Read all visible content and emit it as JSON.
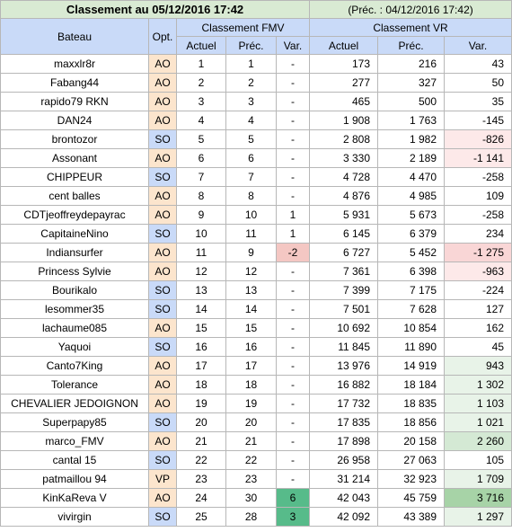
{
  "title": "Classement au 05/12/2016 17:42",
  "prev_title": "(Préc. : 04/12/2016 17:42)",
  "headers": {
    "bateau": "Bateau",
    "opt": "Opt.",
    "fmv_group": "Classement FMV",
    "vr_group": "Classement VR",
    "actuel": "Actuel",
    "prec": "Préc.",
    "var": "Var."
  },
  "colors": {
    "AO": "#fce5cd",
    "SO": "#c9daf8",
    "VP": "#fce5cd",
    "neg_light": "#fde9e9",
    "neg_mid": "#f9d6d6",
    "pos_light": "#e8f3e8",
    "pos_mid": "#d4e9d4",
    "pos_strong": "#a7d3a7",
    "fmv_neg": "#f4c7c3",
    "fmv_pos": "#57bb8a"
  },
  "rows": [
    {
      "name": "maxxlr8r",
      "opt": "AO",
      "fa": "1",
      "fp": "1",
      "fv": "-",
      "va": "173",
      "vp": "216",
      "vv": "43",
      "fvc": "",
      "vvc": ""
    },
    {
      "name": "Fabang44",
      "opt": "AO",
      "fa": "2",
      "fp": "2",
      "fv": "-",
      "va": "277",
      "vp": "327",
      "vv": "50",
      "fvc": "",
      "vvc": ""
    },
    {
      "name": "rapido79 RKN",
      "opt": "AO",
      "fa": "3",
      "fp": "3",
      "fv": "-",
      "va": "465",
      "vp": "500",
      "vv": "35",
      "fvc": "",
      "vvc": ""
    },
    {
      "name": "DAN24",
      "opt": "AO",
      "fa": "4",
      "fp": "4",
      "fv": "-",
      "va": "1 908",
      "vp": "1 763",
      "vv": "-145",
      "fvc": "",
      "vvc": ""
    },
    {
      "name": "brontozor",
      "opt": "SO",
      "fa": "5",
      "fp": "5",
      "fv": "-",
      "va": "2 808",
      "vp": "1 982",
      "vv": "-826",
      "fvc": "",
      "vvc": "neg_light"
    },
    {
      "name": "Assonant",
      "opt": "AO",
      "fa": "6",
      "fp": "6",
      "fv": "-",
      "va": "3 330",
      "vp": "2 189",
      "vv": "-1 141",
      "fvc": "",
      "vvc": "neg_light"
    },
    {
      "name": "CHIPPEUR",
      "opt": "SO",
      "fa": "7",
      "fp": "7",
      "fv": "-",
      "va": "4 728",
      "vp": "4 470",
      "vv": "-258",
      "fvc": "",
      "vvc": ""
    },
    {
      "name": "cent balles",
      "opt": "AO",
      "fa": "8",
      "fp": "8",
      "fv": "-",
      "va": "4 876",
      "vp": "4 985",
      "vv": "109",
      "fvc": "",
      "vvc": ""
    },
    {
      "name": "CDTjeoffreydepayrac",
      "opt": "AO",
      "fa": "9",
      "fp": "10",
      "fv": "1",
      "va": "5 931",
      "vp": "5 673",
      "vv": "-258",
      "fvc": "",
      "vvc": ""
    },
    {
      "name": "CapitaineNino",
      "opt": "SO",
      "fa": "10",
      "fp": "11",
      "fv": "1",
      "va": "6 145",
      "vp": "6 379",
      "vv": "234",
      "fvc": "",
      "vvc": ""
    },
    {
      "name": "Indiansurfer",
      "opt": "AO",
      "fa": "11",
      "fp": "9",
      "fv": "-2",
      "va": "6 727",
      "vp": "5 452",
      "vv": "-1 275",
      "fvc": "fmv_neg",
      "vvc": "neg_mid"
    },
    {
      "name": "Princess Sylvie",
      "opt": "AO",
      "fa": "12",
      "fp": "12",
      "fv": "-",
      "va": "7 361",
      "vp": "6 398",
      "vv": "-963",
      "fvc": "",
      "vvc": "neg_light"
    },
    {
      "name": "Bourikalo",
      "opt": "SO",
      "fa": "13",
      "fp": "13",
      "fv": "-",
      "va": "7 399",
      "vp": "7 175",
      "vv": "-224",
      "fvc": "",
      "vvc": ""
    },
    {
      "name": "lesommer35",
      "opt": "SO",
      "fa": "14",
      "fp": "14",
      "fv": "-",
      "va": "7 501",
      "vp": "7 628",
      "vv": "127",
      "fvc": "",
      "vvc": ""
    },
    {
      "name": "lachaume085",
      "opt": "AO",
      "fa": "15",
      "fp": "15",
      "fv": "-",
      "va": "10 692",
      "vp": "10 854",
      "vv": "162",
      "fvc": "",
      "vvc": ""
    },
    {
      "name": "Yaquoi",
      "opt": "SO",
      "fa": "16",
      "fp": "16",
      "fv": "-",
      "va": "11 845",
      "vp": "11 890",
      "vv": "45",
      "fvc": "",
      "vvc": ""
    },
    {
      "name": "Canto7King",
      "opt": "AO",
      "fa": "17",
      "fp": "17",
      "fv": "-",
      "va": "13 976",
      "vp": "14 919",
      "vv": "943",
      "fvc": "",
      "vvc": "pos_light"
    },
    {
      "name": "Tolerance",
      "opt": "AO",
      "fa": "18",
      "fp": "18",
      "fv": "-",
      "va": "16 882",
      "vp": "18 184",
      "vv": "1 302",
      "fvc": "",
      "vvc": "pos_light"
    },
    {
      "name": "CHEVALIER JEDOIGNON",
      "opt": "AO",
      "fa": "19",
      "fp": "19",
      "fv": "-",
      "va": "17 732",
      "vp": "18 835",
      "vv": "1 103",
      "fvc": "",
      "vvc": "pos_light"
    },
    {
      "name": "Superpapy85",
      "opt": "SO",
      "fa": "20",
      "fp": "20",
      "fv": "-",
      "va": "17 835",
      "vp": "18 856",
      "vv": "1 021",
      "fvc": "",
      "vvc": "pos_light"
    },
    {
      "name": "marco_FMV",
      "opt": "AO",
      "fa": "21",
      "fp": "21",
      "fv": "-",
      "va": "17 898",
      "vp": "20 158",
      "vv": "2 260",
      "fvc": "",
      "vvc": "pos_mid"
    },
    {
      "name": "cantal 15",
      "opt": "SO",
      "fa": "22",
      "fp": "22",
      "fv": "-",
      "va": "26 958",
      "vp": "27 063",
      "vv": "105",
      "fvc": "",
      "vvc": ""
    },
    {
      "name": "patmaillou 94",
      "opt": "VP",
      "fa": "23",
      "fp": "23",
      "fv": "-",
      "va": "31 214",
      "vp": "32 923",
      "vv": "1 709",
      "fvc": "",
      "vvc": "pos_light"
    },
    {
      "name": "KinKaReva V",
      "opt": "AO",
      "fa": "24",
      "fp": "30",
      "fv": "6",
      "va": "42 043",
      "vp": "45 759",
      "vv": "3 716",
      "fvc": "fmv_pos",
      "vvc": "pos_strong"
    },
    {
      "name": "vivirgin",
      "opt": "SO",
      "fa": "25",
      "fp": "28",
      "fv": "3",
      "va": "42 092",
      "vp": "43 389",
      "vv": "1 297",
      "fvc": "fmv_pos",
      "vvc": "pos_light"
    }
  ]
}
